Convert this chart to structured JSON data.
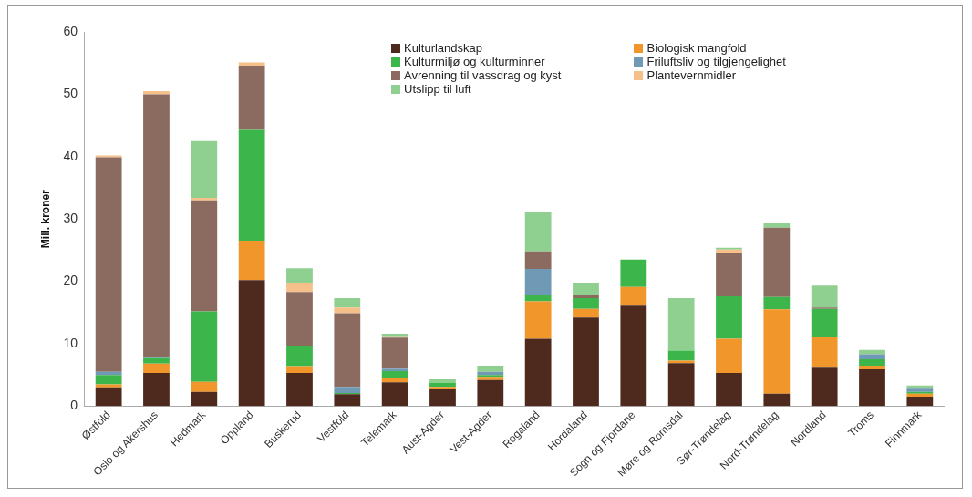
{
  "chart_data": {
    "type": "bar",
    "stacked": true,
    "ylabel": "Mill. kroner",
    "categories": [
      "Østfold",
      "Oslo og Akershus",
      "Hedmark",
      "Oppland",
      "Buskerud",
      "Vestfold",
      "Telemark",
      "Aust-Agder",
      "Vest-Agder",
      "Rogaland",
      "Hordaland",
      "Sogn og Fjordane",
      "Møre og Romsdal",
      "Sør-Trøndelag",
      "Nord-Trøndelag",
      "Nordland",
      "Troms",
      "Finnmark"
    ],
    "series": [
      {
        "name": "Kulturlandskap",
        "color": "#4e2a1e",
        "values": [
          3.0,
          5.3,
          2.3,
          20.2,
          5.3,
          1.9,
          3.8,
          2.7,
          4.2,
          10.8,
          14.2,
          16.1,
          6.9,
          5.3,
          2.0,
          6.3,
          5.9,
          1.5
        ]
      },
      {
        "name": "Biologisk mangfold",
        "color": "#f0962a",
        "values": [
          0.5,
          1.5,
          1.6,
          6.3,
          1.1,
          0,
          0.8,
          0.4,
          0.5,
          6.0,
          1.4,
          3.0,
          0.4,
          5.5,
          13.5,
          4.8,
          0.6,
          0.5
        ]
      },
      {
        "name": "Kulturmiljø og kulturminner",
        "color": "#3cb54a",
        "values": [
          1.5,
          0.9,
          11.3,
          17.8,
          3.3,
          0.2,
          1.0,
          0.6,
          0.3,
          1.1,
          1.7,
          4.4,
          1.6,
          6.8,
          2.0,
          4.5,
          1.0,
          0.3
        ]
      },
      {
        "name": "Friluftsliv og tilgjengelighet",
        "color": "#6f99b4",
        "values": [
          0.5,
          0.2,
          0,
          0,
          0,
          1.0,
          0.4,
          0,
          0.5,
          4.1,
          0,
          0,
          0,
          0,
          0,
          0,
          0.8,
          0.5
        ]
      },
      {
        "name": "Avrenning til vassdrag og kyst",
        "color": "#8b6b60",
        "values": [
          34.4,
          42.1,
          17.8,
          10.3,
          8.6,
          11.8,
          5.0,
          0,
          0,
          2.8,
          0.6,
          0,
          0,
          7.0,
          11.1,
          0.2,
          0,
          0
        ]
      },
      {
        "name": "Plantevernmidler",
        "color": "#f6c08a",
        "values": [
          0.3,
          0.5,
          0.4,
          0.5,
          1.5,
          0.9,
          0.2,
          0,
          0,
          0,
          0,
          0,
          0,
          0.5,
          0,
          0,
          0,
          0
        ]
      },
      {
        "name": "Utslipp til luft",
        "color": "#8fcf8f",
        "values": [
          0,
          0,
          9.1,
          0,
          2.3,
          1.5,
          0.4,
          0.6,
          1.0,
          6.4,
          1.9,
          0,
          8.4,
          0.3,
          0.7,
          3.5,
          0.7,
          0.5
        ]
      }
    ],
    "ylim": [
      0,
      60
    ],
    "yticks": [
      0,
      10,
      20,
      30,
      40,
      50,
      60
    ],
    "grid": false,
    "legend": "top right"
  }
}
